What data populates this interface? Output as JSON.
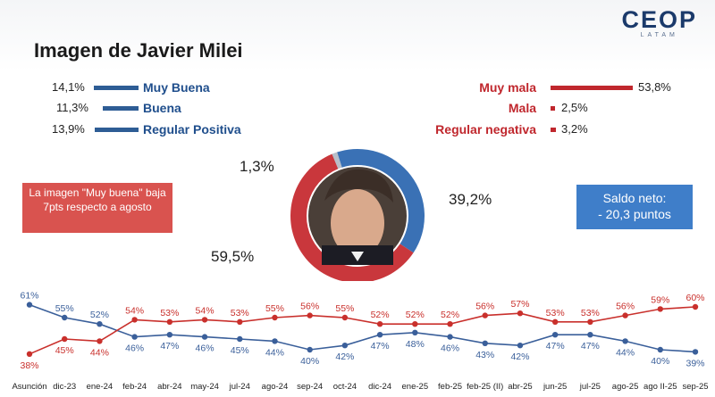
{
  "logo": {
    "main": "CEOP",
    "sub": "LATAM"
  },
  "title": "Imagen de Javier Milei",
  "positive": [
    {
      "pct": "14,1%",
      "label": "Muy Buena",
      "value": 14.1
    },
    {
      "pct": "11,3%",
      "label": "Buena",
      "value": 11.3
    },
    {
      "pct": "13,9%",
      "label": "Regular Positiva",
      "value": 13.9
    }
  ],
  "negative": [
    {
      "pct": "53,8%",
      "label": "Muy mala",
      "value": 53.8
    },
    {
      "pct": "2,5%",
      "label": "Mala",
      "value": 2.5
    },
    {
      "pct": "3,2%",
      "label": "Regular negativa",
      "value": 3.2
    }
  ],
  "colors": {
    "positive": "#2e5d95",
    "negative": "#c0272d",
    "donut_blue": "#3a71b5",
    "donut_red": "#c9373c",
    "donut_grey": "#b8bfc9"
  },
  "note_left": "La imagen \"Muy buena\" baja 7pts respecto a agosto",
  "note_right": {
    "line1": "Saldo neto:",
    "line2": "- 20,3 puntos"
  },
  "donut": {
    "labels": {
      "grey": "1,3%",
      "blue": "39,2%",
      "red": "59,5%"
    },
    "values": {
      "grey": 1.3,
      "blue": 39.2,
      "red": 59.5
    }
  },
  "chart_data": {
    "type": "line",
    "categories": [
      "Asunción",
      "dic-23",
      "ene-24",
      "feb-24",
      "abr-24",
      "may-24",
      "jul-24",
      "ago-24",
      "sep-24",
      "oct-24",
      "dic-24",
      "ene-25",
      "feb-25",
      "feb-25",
      "(II)abr-25",
      "jun-25",
      "jul-25",
      "ago-25",
      "ago II-25",
      "sep-25"
    ],
    "x_tick_labels": [
      "Asunción",
      "dic-23",
      "ene-24",
      "feb-24",
      "abr-24",
      "may-24",
      "jul-24",
      "ago-24",
      "sep-24",
      "oct-24",
      "dic-24",
      "ene-25",
      "feb-25",
      "feb-25 (II)",
      "abr-25",
      "jun-25",
      "jul-25",
      "ago-25",
      "ago II-25",
      "sep-25"
    ],
    "series": [
      {
        "color": "#3a5f9a",
        "values": [
          61,
          55,
          52,
          46,
          47,
          46,
          45,
          44,
          40,
          42,
          47,
          48,
          46,
          43,
          42,
          47,
          47,
          44,
          40,
          39
        ],
        "labels": [
          "61%",
          "55%",
          "52%",
          "46%",
          "47%",
          "46%",
          "45%",
          "44%",
          "40%",
          "42%",
          "47%",
          "48%",
          "46%",
          "43%",
          "42%",
          "47%",
          "47%",
          "44%",
          "40%",
          "39%"
        ]
      },
      {
        "color": "#c9302c",
        "values": [
          38,
          45,
          44,
          54,
          53,
          54,
          53,
          55,
          56,
          55,
          52,
          52,
          52,
          56,
          57,
          53,
          53,
          56,
          59,
          60
        ],
        "labels": [
          "38%",
          "45%",
          "44%",
          "54%",
          "53%",
          "54%",
          "53%",
          "55%",
          "56%",
          "55%",
          "52%",
          "52%",
          "52%",
          "56%",
          "57%",
          "53%",
          "53%",
          "56%",
          "59%",
          "60%"
        ]
      }
    ],
    "ylim": [
      35,
      65
    ]
  }
}
